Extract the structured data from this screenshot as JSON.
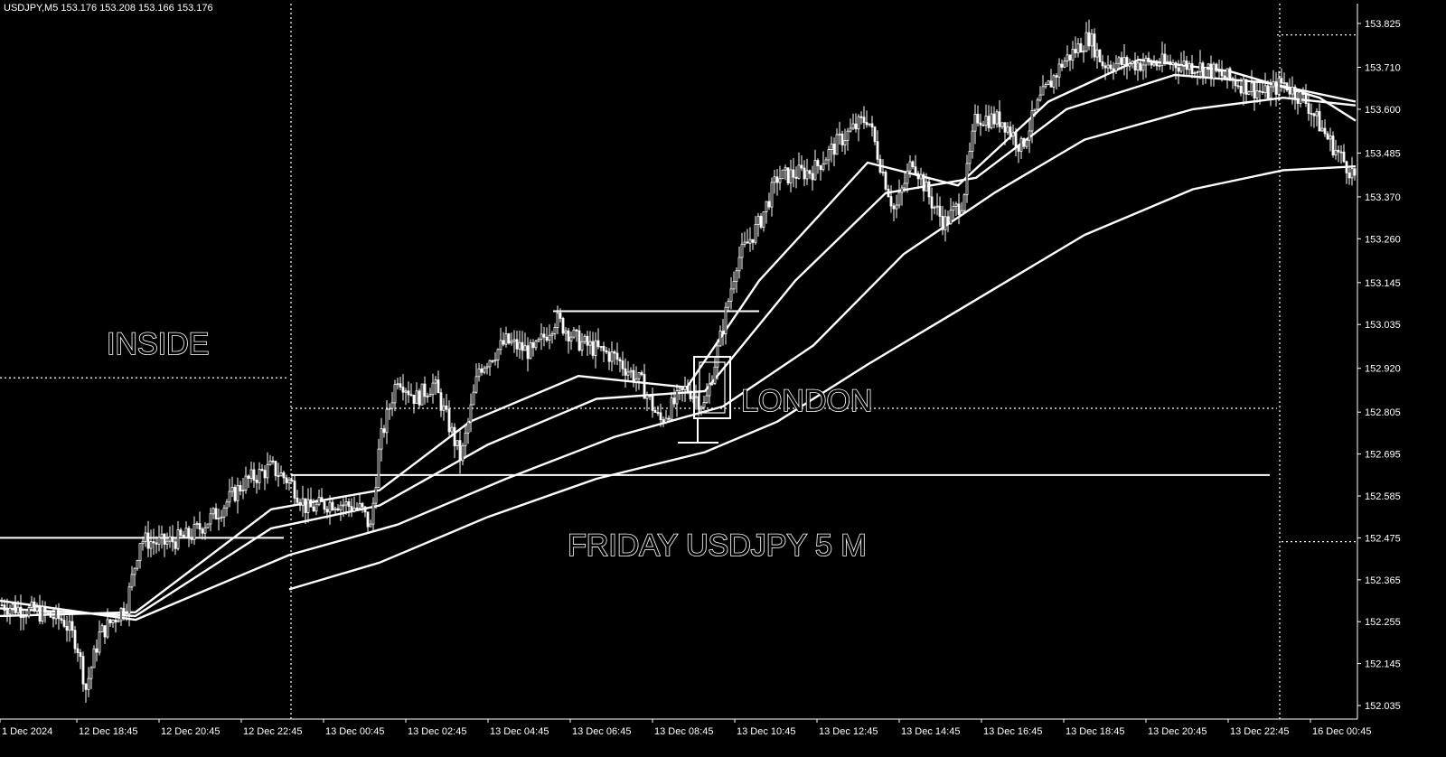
{
  "window": {
    "symbol_info": "USDJPY,M5  153.176 153.208 153.166 153.176"
  },
  "colors": {
    "background": "#000000",
    "foreground": "#ffffff"
  },
  "annotations": {
    "inside": "INSIDE",
    "london": "LONDON",
    "friday": "FRIDAY USDJPY 5 M"
  },
  "chart_data": {
    "type": "candlestick",
    "title": "",
    "grid": false,
    "y_axis": {
      "position": "right",
      "range": [
        152.02,
        153.9
      ],
      "ticks": [
        "153.825",
        "153.710",
        "153.600",
        "153.485",
        "153.370",
        "153.260",
        "153.145",
        "153.035",
        "152.920",
        "152.805",
        "152.695",
        "152.585",
        "152.475",
        "152.365",
        "152.255",
        "152.145",
        "152.035"
      ]
    },
    "x_axis": {
      "ticks": [
        "1 Dec 2024",
        "12 Dec 18:45",
        "12 Dec 20:45",
        "12 Dec 22:45",
        "13 Dec 00:45",
        "13 Dec 02:45",
        "13 Dec 04:45",
        "13 Dec 06:45",
        "13 Dec 08:45",
        "13 Dec 10:45",
        "13 Dec 12:45",
        "13 Dec 14:45",
        "13 Dec 16:45",
        "13 Dec 18:45",
        "13 Dec 20:45",
        "13 Dec 22:45",
        "16 Dec 00:45"
      ]
    },
    "price_path": [
      [
        0,
        152.3
      ],
      [
        40,
        152.28
      ],
      [
        70,
        152.26
      ],
      [
        85,
        152.2
      ],
      [
        95,
        152.08
      ],
      [
        110,
        152.22
      ],
      [
        140,
        152.3
      ],
      [
        155,
        152.47
      ],
      [
        180,
        152.46
      ],
      [
        210,
        152.48
      ],
      [
        240,
        152.54
      ],
      [
        270,
        152.62
      ],
      [
        300,
        152.66
      ],
      [
        322,
        152.62
      ],
      [
        340,
        152.55
      ],
      [
        370,
        152.57
      ],
      [
        400,
        152.55
      ],
      [
        410,
        152.5
      ],
      [
        420,
        152.72
      ],
      [
        440,
        152.9
      ],
      [
        460,
        152.84
      ],
      [
        480,
        152.88
      ],
      [
        500,
        152.75
      ],
      [
        510,
        152.68
      ],
      [
        530,
        152.92
      ],
      [
        560,
        152.99
      ],
      [
        590,
        152.96
      ],
      [
        615,
        153.05
      ],
      [
        640,
        152.99
      ],
      [
        680,
        152.95
      ],
      [
        710,
        152.88
      ],
      [
        730,
        152.78
      ],
      [
        760,
        152.87
      ],
      [
        780,
        152.82
      ],
      [
        800,
        153.03
      ],
      [
        815,
        153.2
      ],
      [
        840,
        153.3
      ],
      [
        860,
        153.42
      ],
      [
        900,
        153.44
      ],
      [
        930,
        153.52
      ],
      [
        960,
        153.58
      ],
      [
        975,
        153.45
      ],
      [
        990,
        153.33
      ],
      [
        1010,
        153.47
      ],
      [
        1030,
        153.36
      ],
      [
        1045,
        153.3
      ],
      [
        1065,
        153.36
      ],
      [
        1080,
        153.58
      ],
      [
        1110,
        153.57
      ],
      [
        1130,
        153.5
      ],
      [
        1150,
        153.62
      ],
      [
        1175,
        153.72
      ],
      [
        1205,
        153.79
      ],
      [
        1220,
        153.72
      ],
      [
        1260,
        153.72
      ],
      [
        1300,
        153.72
      ],
      [
        1330,
        153.71
      ],
      [
        1370,
        153.67
      ],
      [
        1400,
        153.64
      ],
      [
        1420,
        153.67
      ],
      [
        1445,
        153.62
      ],
      [
        1470,
        153.52
      ],
      [
        1500,
        153.42
      ]
    ],
    "moving_averages": [
      {
        "points": [
          [
            0,
            152.27
          ],
          [
            150,
            152.28
          ],
          [
            300,
            152.55
          ],
          [
            420,
            152.6
          ],
          [
            520,
            152.78
          ],
          [
            640,
            152.9
          ],
          [
            760,
            152.87
          ],
          [
            840,
            153.15
          ],
          [
            960,
            153.46
          ],
          [
            1060,
            153.4
          ],
          [
            1160,
            153.62
          ],
          [
            1260,
            153.73
          ],
          [
            1360,
            153.7
          ],
          [
            1460,
            153.63
          ],
          [
            1500,
            153.57
          ]
        ]
      },
      {
        "points": [
          [
            0,
            152.29
          ],
          [
            150,
            152.27
          ],
          [
            300,
            152.5
          ],
          [
            420,
            152.56
          ],
          [
            540,
            152.72
          ],
          [
            660,
            152.84
          ],
          [
            780,
            152.86
          ],
          [
            880,
            153.15
          ],
          [
            980,
            153.38
          ],
          [
            1080,
            153.42
          ],
          [
            1180,
            153.6
          ],
          [
            1300,
            153.69
          ],
          [
            1400,
            153.67
          ],
          [
            1500,
            153.62
          ]
        ]
      },
      {
        "points": [
          [
            0,
            152.31
          ],
          [
            150,
            152.26
          ],
          [
            320,
            152.43
          ],
          [
            440,
            152.51
          ],
          [
            560,
            152.63
          ],
          [
            680,
            152.74
          ],
          [
            800,
            152.82
          ],
          [
            900,
            152.98
          ],
          [
            1000,
            153.22
          ],
          [
            1100,
            153.38
          ],
          [
            1200,
            153.52
          ],
          [
            1320,
            153.6
          ],
          [
            1420,
            153.63
          ],
          [
            1500,
            153.61
          ]
        ]
      },
      {
        "points": [
          [
            320,
            152.34
          ],
          [
            420,
            152.41
          ],
          [
            540,
            152.53
          ],
          [
            660,
            152.63
          ],
          [
            780,
            152.7
          ],
          [
            860,
            152.78
          ],
          [
            960,
            152.93
          ],
          [
            1080,
            153.1
          ],
          [
            1200,
            153.27
          ],
          [
            1320,
            153.39
          ],
          [
            1420,
            153.44
          ],
          [
            1500,
            153.45
          ]
        ]
      }
    ],
    "horizontal_lines": [
      {
        "y": 152.475,
        "x_from": 0,
        "x_to": 314,
        "style": "solid"
      },
      {
        "y": 152.895,
        "x_from": 0,
        "x_to": 320,
        "style": "dotted"
      },
      {
        "y": 153.07,
        "x_from": 612,
        "x_to": 840,
        "style": "solid"
      },
      {
        "y": 152.815,
        "x_from": 322,
        "x_to": 1413,
        "style": "dotted"
      },
      {
        "y": 152.64,
        "x_from": 322,
        "x_to": 1405,
        "style": "solid"
      },
      {
        "y": 153.795,
        "x_from": 1413,
        "x_to": 1502,
        "style": "dotted"
      },
      {
        "y": 152.465,
        "x_from": 1418,
        "x_to": 1502,
        "style": "dotted"
      }
    ],
    "vertical_lines": [
      {
        "x": 322,
        "style": "dotted"
      },
      {
        "x": 1416,
        "style": "dotted"
      }
    ]
  }
}
